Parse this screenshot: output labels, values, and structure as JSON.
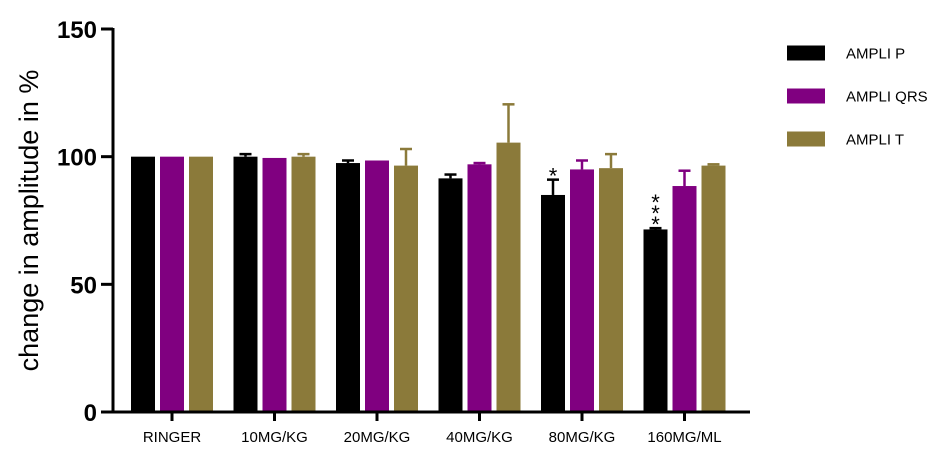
{
  "chart_data": {
    "type": "bar",
    "ylabel": "change in amplitude in %",
    "xlabel": "",
    "ylim": [
      0,
      150
    ],
    "yticks": [
      0,
      50,
      100,
      150
    ],
    "categories": [
      "RINGER",
      "10MG/KG",
      "20MG/KG",
      "40MG/KG",
      "80MG/KG",
      "160MG/ML"
    ],
    "series": [
      {
        "name": "AMPLI P",
        "color": "#000000",
        "values": [
          100,
          100,
          97.5,
          91.5,
          85,
          71.5
        ],
        "errors": [
          0,
          1,
          1,
          1.5,
          6,
          0.5
        ]
      },
      {
        "name": "AMPLI QRS",
        "color": "#800080",
        "values": [
          100,
          99.5,
          98.5,
          97,
          95,
          88.5
        ],
        "errors": [
          0,
          0,
          0,
          0.5,
          3.5,
          6
        ]
      },
      {
        "name": "AMPLI T",
        "color": "#8b7a3a",
        "values": [
          100,
          100,
          96.5,
          105.5,
          95.5,
          96.5
        ],
        "errors": [
          0,
          1,
          6.5,
          15,
          5.5,
          0.5
        ]
      }
    ],
    "annotations": [
      {
        "text": "*",
        "category": "80MG/KG",
        "series": "AMPLI P"
      },
      {
        "text": "***",
        "category": "160MG/ML",
        "series": "AMPLI P"
      }
    ],
    "legend_position": "top-right",
    "grid": false
  }
}
